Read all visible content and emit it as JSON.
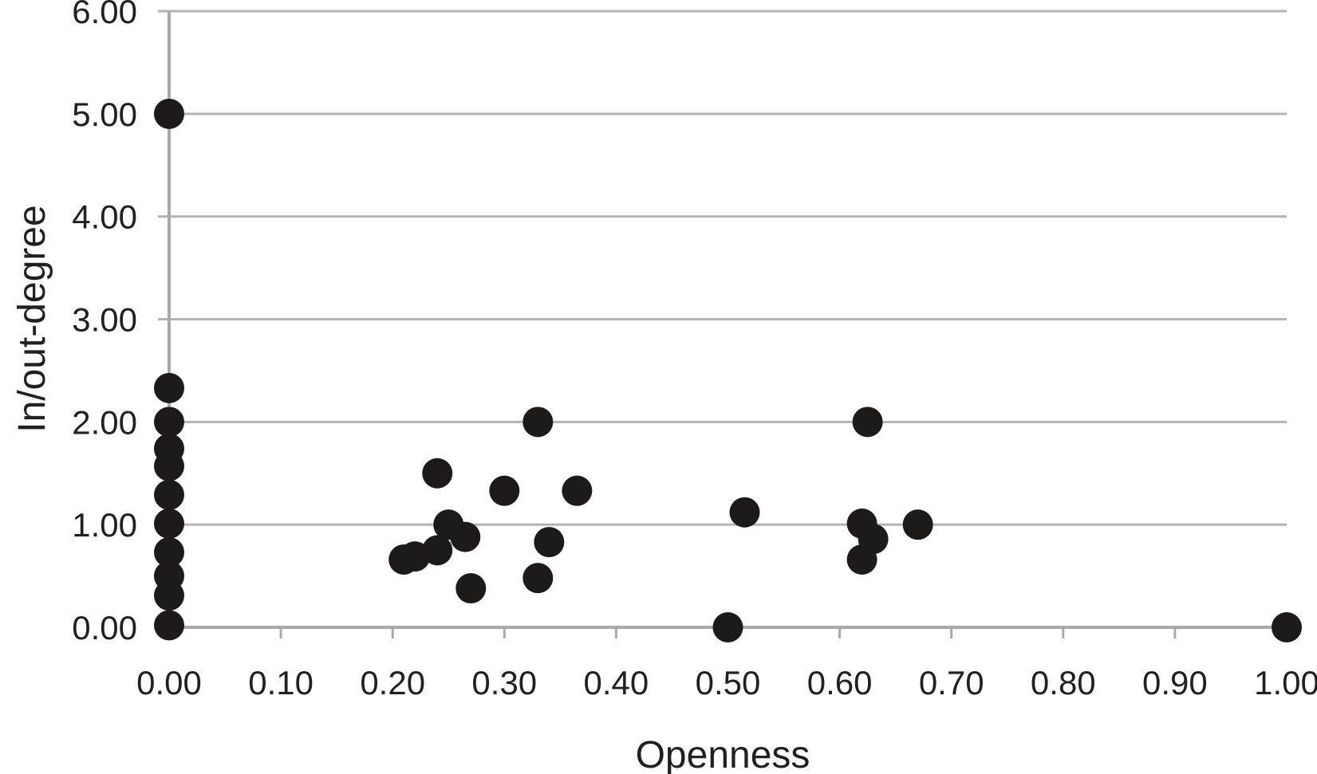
{
  "chart_data": {
    "type": "scatter",
    "title": "",
    "xlabel": "Openness",
    "ylabel": "In/out-degree",
    "xlim": [
      0.0,
      1.0
    ],
    "ylim": [
      0.0,
      6.0
    ],
    "grid": "horizontal gridlines at each y tick, light gray",
    "legend": "none",
    "x_tick_labels": [
      "0.00",
      "0.10",
      "0.20",
      "0.30",
      "0.40",
      "0.50",
      "0.60",
      "0.70",
      "0.80",
      "0.90",
      "1.00"
    ],
    "x_tick_values": [
      0.0,
      0.1,
      0.2,
      0.3,
      0.4,
      0.5,
      0.6,
      0.7,
      0.8,
      0.9,
      1.0
    ],
    "y_tick_labels": [
      "0.00",
      "1.00",
      "2.00",
      "3.00",
      "4.00",
      "5.00",
      "6.00"
    ],
    "y_tick_values": [
      0,
      1,
      2,
      3,
      4,
      5,
      6
    ],
    "marker": "filled circle",
    "marker_radius_px": 19,
    "point_color": "#1d1a19",
    "gridline_color": "#b3b3b3",
    "axis_color": "#a9a9a9",
    "text_color": "#221f1f",
    "points": [
      {
        "x": 0.0,
        "y": 5.0
      },
      {
        "x": 0.0,
        "y": 2.33
      },
      {
        "x": 0.0,
        "y": 2.0
      },
      {
        "x": 0.0,
        "y": 1.74
      },
      {
        "x": 0.0,
        "y": 1.57
      },
      {
        "x": 0.0,
        "y": 1.29
      },
      {
        "x": 0.0,
        "y": 1.01
      },
      {
        "x": 0.0,
        "y": 0.73
      },
      {
        "x": 0.0,
        "y": 0.5
      },
      {
        "x": 0.0,
        "y": 0.31
      },
      {
        "x": 0.0,
        "y": 0.02
      },
      {
        "x": 0.21,
        "y": 0.66
      },
      {
        "x": 0.22,
        "y": 0.69
      },
      {
        "x": 0.24,
        "y": 0.75
      },
      {
        "x": 0.25,
        "y": 1.0
      },
      {
        "x": 0.265,
        "y": 0.88
      },
      {
        "x": 0.24,
        "y": 1.5
      },
      {
        "x": 0.27,
        "y": 0.38
      },
      {
        "x": 0.3,
        "y": 1.33
      },
      {
        "x": 0.33,
        "y": 2.0
      },
      {
        "x": 0.34,
        "y": 0.83
      },
      {
        "x": 0.33,
        "y": 0.48
      },
      {
        "x": 0.365,
        "y": 1.33
      },
      {
        "x": 0.5,
        "y": 0.0
      },
      {
        "x": 0.515,
        "y": 1.12
      },
      {
        "x": 0.62,
        "y": 1.01
      },
      {
        "x": 0.63,
        "y": 0.86
      },
      {
        "x": 0.62,
        "y": 0.66
      },
      {
        "x": 0.625,
        "y": 2.0
      },
      {
        "x": 0.67,
        "y": 1.0
      },
      {
        "x": 1.0,
        "y": 0.0
      }
    ]
  }
}
